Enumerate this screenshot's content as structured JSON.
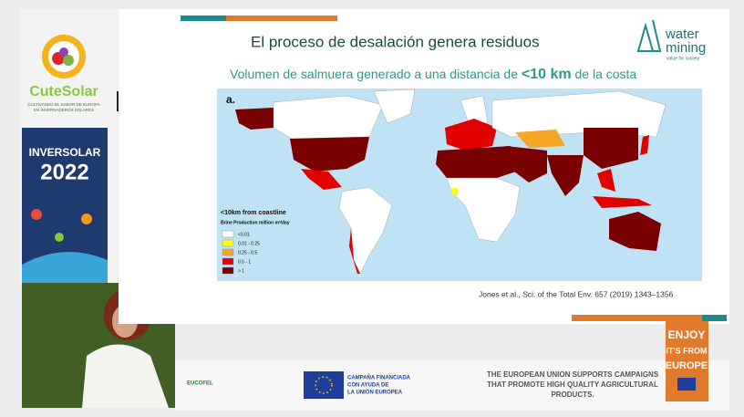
{
  "sidebar": {
    "brand": "CuteSolar",
    "tagline": [
      "CULTIVANDO EL SABOR DE EUROPA",
      "EN INVERNADEROS SOLARES"
    ],
    "banner_title": "INVERSOLAR",
    "banner_year": "2022"
  },
  "slide": {
    "title": "El proceso de desalación genera residuos",
    "subtitle": {
      "before": "Volumen de salmuera generado a una distancia de",
      "highlight": "<10 km",
      "after": "de la costa"
    },
    "logo": {
      "line1": "water",
      "line2": "mining",
      "tagline": "value for society"
    },
    "map": {
      "panel_label": "a.",
      "legend_title": "<10km from coastline",
      "legend_subtitle": "Brine Production million m³/day",
      "legend": [
        {
          "label": "<0.01",
          "color": "#ffffff"
        },
        {
          "label": "0.01 - 0.25",
          "color": "#ffff00"
        },
        {
          "label": "0.25 - 0.5",
          "color": "#f5a623"
        },
        {
          "label": "0.5 - 1",
          "color": "#e00000"
        },
        {
          "label": "> 1",
          "color": "#7a0000"
        }
      ]
    },
    "citation": "Jones et al., Sci. of the Total Env. 657 (2019) 1343–1356"
  },
  "footer": {
    "eucofel": "EUCOFEL",
    "campaign": [
      "CAMPAÑA FINANCIADA",
      "CON AYUDA DE",
      "LA UNIÓN EUROPEA"
    ],
    "eu_statement": [
      "THE EUROPEAN UNION SUPPORTS CAMPAIGNS",
      "THAT PROMOTE HIGH QUALITY AGRICULTURAL",
      "PRODUCTS."
    ],
    "enjoy": [
      "ENJOY",
      "IT'S FROM",
      "EUROPE"
    ]
  }
}
